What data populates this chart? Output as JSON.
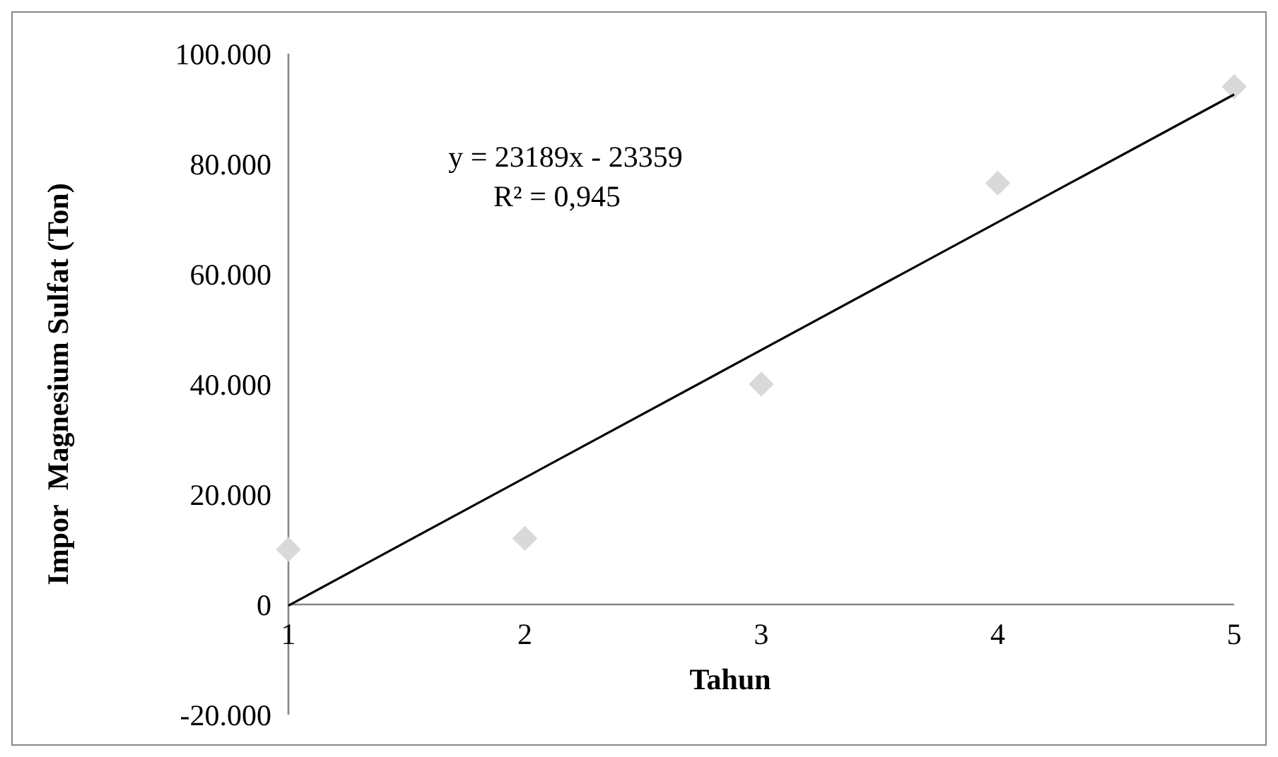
{
  "chart_data": {
    "type": "scatter",
    "xlabel": "Tahun",
    "ylabel": "Impor  Magnesium Sulfat (Ton)",
    "x": [
      1,
      2,
      3,
      4,
      5
    ],
    "series": [
      {
        "color": "#d9d9d9",
        "values": [
          10000,
          12000,
          40000,
          76500,
          94000
        ],
        "marker": "diamond"
      },
      {
        "type": "line",
        "color": "#000000",
        "x": [
          1,
          5
        ],
        "values": [
          -200,
          92600
        ],
        "marker": "none"
      }
    ],
    "annotations": [
      "y = 23189x - 23359",
      "R² = 0,945"
    ],
    "xlim": [
      1,
      5
    ],
    "xticks": [
      1,
      2,
      3,
      4,
      5
    ],
    "ylim": [
      -20000,
      100000
    ],
    "yticks": [
      {
        "value": -20000,
        "label": "-20.000"
      },
      0,
      {
        "value": 20000,
        "label": "20.000"
      },
      {
        "value": 40000,
        "label": "40.000"
      },
      {
        "value": 60000,
        "label": "60.000"
      },
      {
        "value": 80000,
        "label": "80.000"
      },
      {
        "value": 100000,
        "label": "100.000"
      }
    ],
    "grid": false
  }
}
